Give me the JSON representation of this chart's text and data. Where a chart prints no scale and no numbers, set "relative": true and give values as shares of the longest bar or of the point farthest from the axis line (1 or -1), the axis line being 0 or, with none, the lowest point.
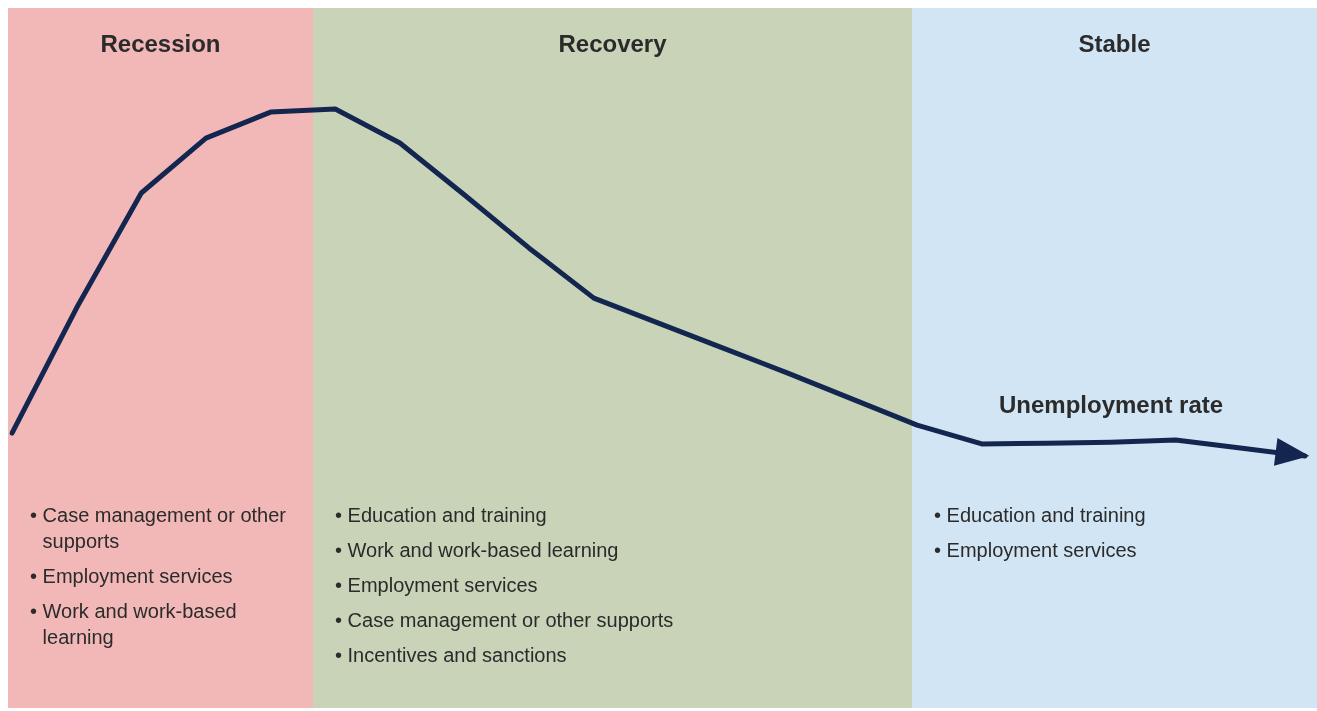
{
  "chart_data": {
    "type": "line",
    "relative": true,
    "tick_labels": false,
    "categories": [
      null,
      null,
      null,
      null,
      null,
      null,
      null,
      null,
      null,
      null,
      null,
      null,
      null,
      null,
      null,
      null,
      null,
      null,
      null,
      null,
      null
    ],
    "series": [
      {
        "name": "Unemployment rate",
        "color": "#13264f",
        "values": [
          0.066,
          0.427,
          0.758,
          0.916,
          0.991,
          1,
          0.902,
          0.752,
          0.599,
          0.455,
          0.383,
          0.311,
          0.239,
          0.164,
          0.089,
          0.035,
          0.037,
          0.04,
          0.046,
          0.023,
          0
        ]
      }
    ],
    "annotations": [
      "Recession",
      "Recovery",
      "Stable",
      "• Case management or other supports\n• Employment services\n• Work and work-based learning",
      "• Education and training\n• Work and work-based learning\n• Employment services\n• Case management or other supports\n• Incentives and sanctions",
      "• Education and training\n• Employment services"
    ]
  }
}
